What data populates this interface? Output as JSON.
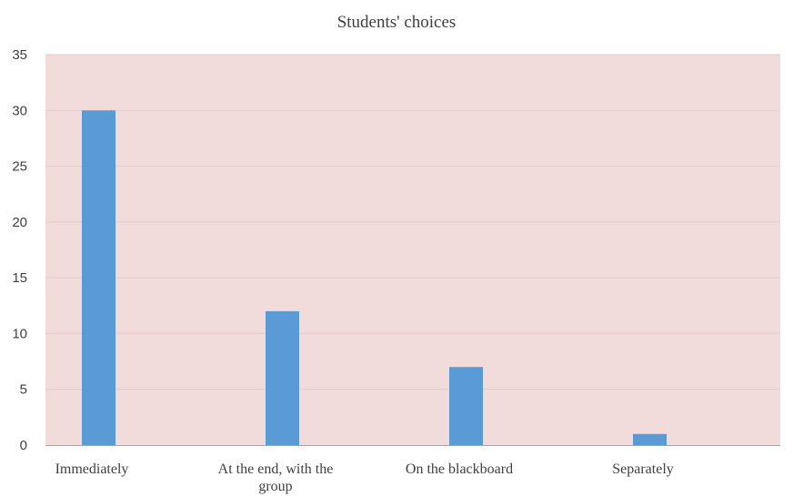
{
  "chart_data": {
    "type": "bar",
    "title": "Students' choices",
    "xlabel": "",
    "ylabel": "",
    "categories": [
      "Immediately",
      "At the end, with the group",
      "On the blackboard",
      "Separately"
    ],
    "category_label_lines": [
      [
        "Immediately"
      ],
      [
        "At the end, with the",
        "group"
      ],
      [
        "On the blackboard"
      ],
      [
        "Separately"
      ]
    ],
    "values": [
      30,
      12,
      7,
      1
    ],
    "ylim": [
      0,
      35
    ],
    "yticks": [
      0,
      5,
      10,
      15,
      20,
      25,
      30,
      35
    ],
    "grid": true,
    "legend": "none"
  },
  "colors": {
    "plot_background": "#f2dcdb",
    "bar": "#5b9bd5",
    "gridline": "#e6cccb",
    "axis": "#a6a6a6"
  }
}
